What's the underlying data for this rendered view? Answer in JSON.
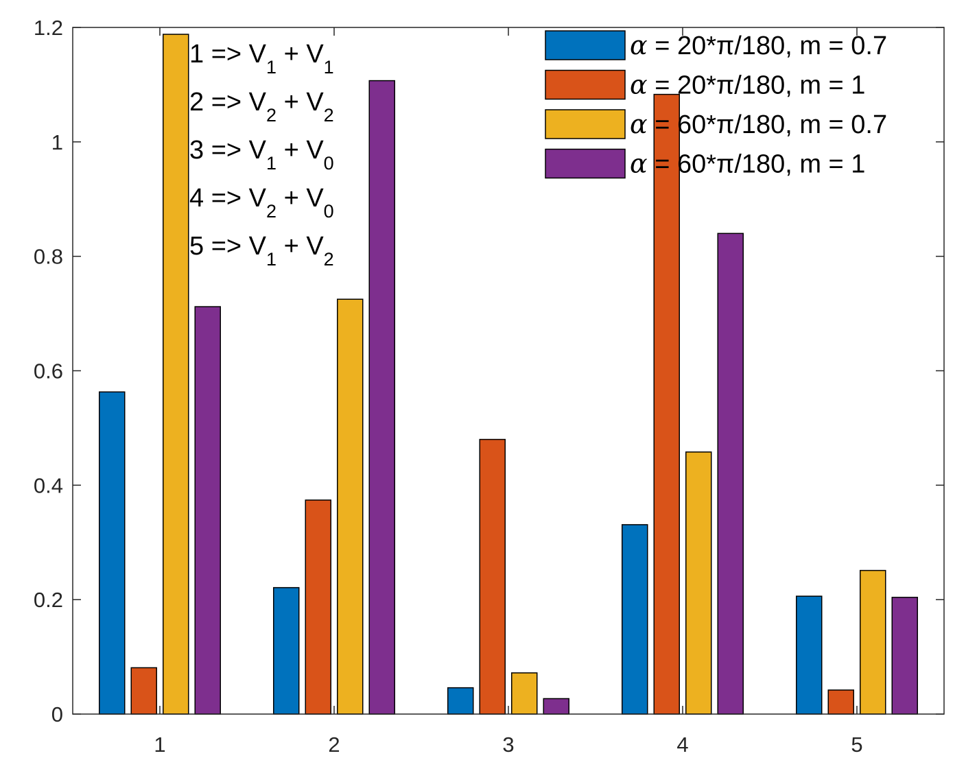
{
  "chart_data": {
    "type": "bar",
    "title": "",
    "xlabel": "",
    "ylabel": "",
    "categories": [
      "1",
      "2",
      "3",
      "4",
      "5"
    ],
    "ylim": [
      0,
      1.2
    ],
    "yticks": [
      "0",
      "0.2",
      "0.4",
      "0.6",
      "0.8",
      "1",
      "1.2"
    ],
    "series": [
      {
        "name": "α = 20*π/180, m = 0.7",
        "alpha_symbol": "α",
        "name_rest": " = 20*π/180, m = 0.7",
        "color": "#0072BD",
        "values": [
          0.563,
          0.221,
          0.046,
          0.331,
          0.206
        ]
      },
      {
        "name": "α = 20*π/180, m = 1",
        "alpha_symbol": "α",
        "name_rest": " = 20*π/180, m = 1",
        "color": "#D95319",
        "values": [
          0.081,
          0.374,
          0.48,
          1.083,
          0.042
        ]
      },
      {
        "name": "α = 60*π/180, m = 0.7",
        "alpha_symbol": "α",
        "name_rest": " = 60*π/180, m = 0.7",
        "color": "#EDB120",
        "values": [
          1.188,
          0.725,
          0.072,
          0.458,
          0.251
        ]
      },
      {
        "name": "α = 60*π/180, m = 1",
        "alpha_symbol": "α",
        "name_rest": " = 60*π/180, m = 1",
        "color": "#7E2F8E",
        "values": [
          0.712,
          1.107,
          0.027,
          0.84,
          0.204
        ]
      }
    ],
    "legend_position": "top-right",
    "grid": false,
    "annotations": [
      {
        "label": "1 => V",
        "sub1": "1",
        "plus": " + V",
        "sub2": "1"
      },
      {
        "label": "2 => V",
        "sub1": "2",
        "plus": " + V",
        "sub2": "2"
      },
      {
        "label": "3 => V",
        "sub1": "1",
        "plus": " + V",
        "sub2": "0"
      },
      {
        "label": "4 => V",
        "sub1": "2",
        "plus": " + V",
        "sub2": "0"
      },
      {
        "label": "5 => V",
        "sub1": "1",
        "plus": " + V",
        "sub2": "2"
      }
    ]
  }
}
